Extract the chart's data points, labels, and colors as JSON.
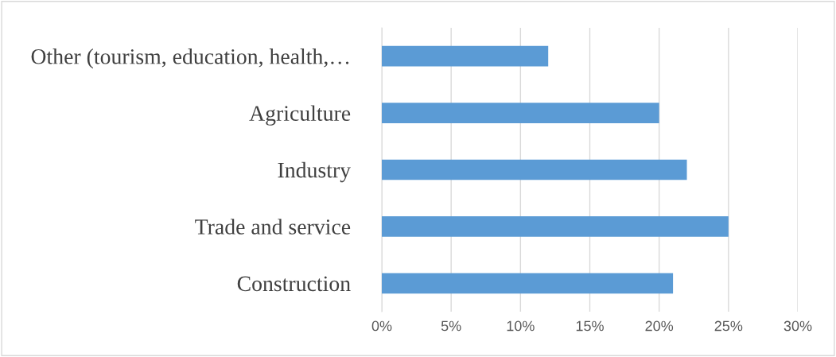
{
  "chart_data": {
    "type": "bar",
    "orientation": "horizontal",
    "categories": [
      "Other (tourism, education, health,…",
      "Agriculture",
      "Industry",
      "Trade and service",
      "Construction"
    ],
    "values": [
      12,
      20,
      22,
      25,
      21
    ],
    "color": "#5b9bd5",
    "xlim": [
      0,
      30
    ],
    "xticks": [
      {
        "value": 0,
        "label": "0%"
      },
      {
        "value": 5,
        "label": "5%"
      },
      {
        "value": 10,
        "label": "10%"
      },
      {
        "value": 15,
        "label": "15%"
      },
      {
        "value": 20,
        "label": "20%"
      },
      {
        "value": 25,
        "label": "25%"
      },
      {
        "value": 30,
        "label": "30%"
      }
    ],
    "grid": "x",
    "legend": false
  }
}
